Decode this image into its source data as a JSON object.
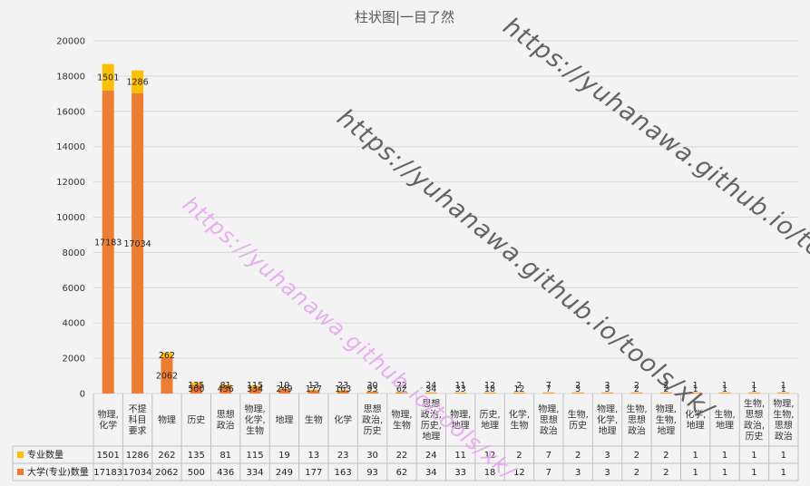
{
  "chart_data": {
    "type": "bar",
    "stacked": true,
    "title": "柱状图|一目了然",
    "ylim": [
      0,
      20000
    ],
    "yticks": [
      0,
      2000,
      4000,
      6000,
      8000,
      10000,
      12000,
      14000,
      16000,
      18000,
      20000
    ],
    "grid": true,
    "legend_position": "bottom-left (in data table)",
    "categories": [
      [
        "物理,",
        "化学"
      ],
      [
        "不提",
        "科目",
        "要求"
      ],
      [
        "物理"
      ],
      [
        "历史"
      ],
      [
        "思想",
        "政治"
      ],
      [
        "物理,",
        "化学,",
        "生物"
      ],
      [
        "地理"
      ],
      [
        "生物"
      ],
      [
        "化学"
      ],
      [
        "思想",
        "政治,",
        "历史"
      ],
      [
        "物理,",
        "生物"
      ],
      [
        "思想",
        "政治,",
        "历史,",
        "地理"
      ],
      [
        "物理,",
        "地理"
      ],
      [
        "历史,",
        "地理"
      ],
      [
        "化学,",
        "生物"
      ],
      [
        "物理,",
        "思想",
        "政治"
      ],
      [
        "生物,",
        "历史"
      ],
      [
        "物理,",
        "化学,",
        "地理"
      ],
      [
        "生物,",
        "思想",
        "政治"
      ],
      [
        "物理,",
        "生物,",
        "地理"
      ],
      [
        "化学,",
        "地理"
      ],
      [
        "生物,",
        "地理"
      ],
      [
        "生物,",
        "思想",
        "政治,",
        "历史"
      ],
      [
        "物理,",
        "生物,",
        "思想",
        "政治"
      ]
    ],
    "series": [
      {
        "name": "大学(专业)数量",
        "color": "#ed7d31",
        "values": [
          17183,
          17034,
          2062,
          500,
          436,
          334,
          249,
          177,
          163,
          93,
          62,
          34,
          33,
          18,
          12,
          7,
          3,
          3,
          2,
          2,
          1,
          1,
          1,
          1
        ]
      },
      {
        "name": "专业数量",
        "color": "#ffc000",
        "values": [
          1501,
          1286,
          262,
          135,
          81,
          115,
          19,
          13,
          23,
          30,
          22,
          24,
          11,
          12,
          2,
          7,
          2,
          3,
          2,
          2,
          1,
          1,
          1,
          1
        ]
      }
    ]
  },
  "watermarks": [
    {
      "text": "https://yuhanawa.github.io/tools/xk/",
      "color": "#555555"
    },
    {
      "text": "https://yuhanawa.github.io/tools/xk/",
      "color": "#555555"
    },
    {
      "text": "https://yuhanawa.github.io/tools/xk/",
      "color": "#e6a8f0"
    }
  ]
}
